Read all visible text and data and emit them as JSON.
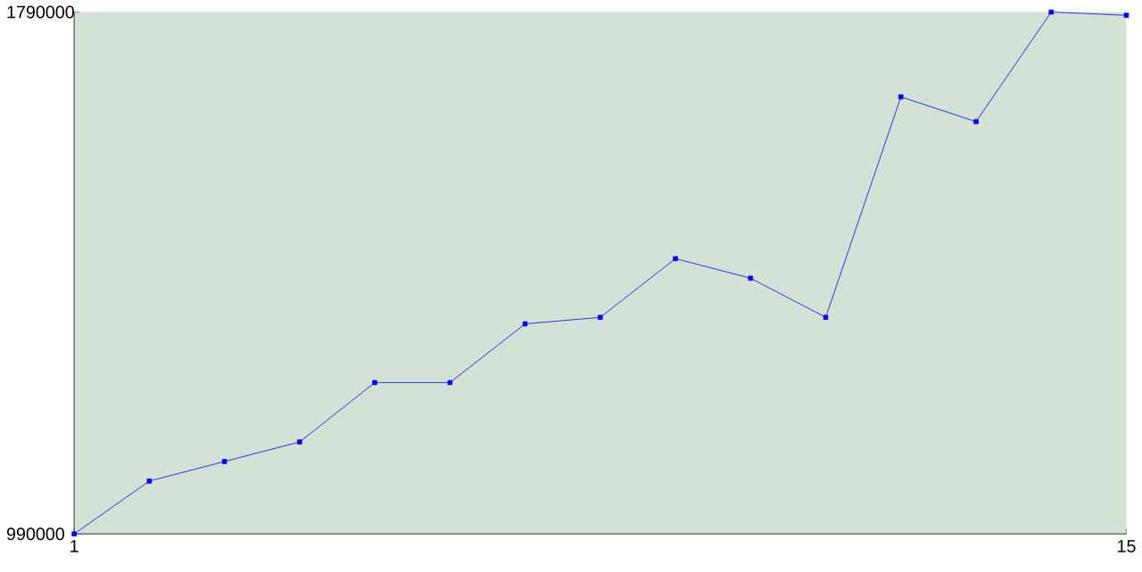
{
  "chart_data": {
    "type": "line",
    "x": [
      1,
      2,
      3,
      4,
      5,
      6,
      7,
      8,
      9,
      10,
      11,
      12,
      13,
      14,
      15
    ],
    "series": [
      {
        "color": "#0000ff",
        "values": [
          990000,
          1071000,
          1101000,
          1131000,
          1222000,
          1222000,
          1312000,
          1322000,
          1412000,
          1382000,
          1322000,
          1660000,
          1622000,
          1790000,
          1785000
        ]
      }
    ],
    "xlim": [
      1,
      15
    ],
    "ylim": [
      990000,
      1790000
    ],
    "xticks": [
      1,
      15
    ],
    "yticks": [
      990000,
      1790000
    ],
    "marker": "square",
    "line_style": "solid",
    "grid": false
  }
}
